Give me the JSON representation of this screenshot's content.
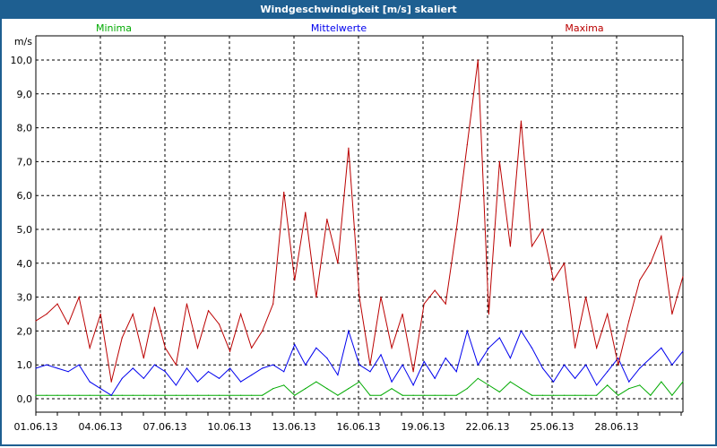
{
  "window": {
    "title": "Windgeschwindigkeit [m/s] skaliert"
  },
  "chart_data": {
    "type": "line",
    "title": "Windgeschwindigkeit [m/s] skaliert",
    "ylabel": "m/s",
    "ylim": [
      -0.4,
      11.1
    ],
    "yticks": [
      "0,0",
      "1,0",
      "2,0",
      "3,0",
      "4,0",
      "5,0",
      "6,0",
      "7,0",
      "8,0",
      "9,0",
      "10,0"
    ],
    "xticks": [
      "01.06.13",
      "04.06.13",
      "07.06.13",
      "10.06.13",
      "13.06.13",
      "16.06.13",
      "19.06.13",
      "22.06.13",
      "25.06.13",
      "28.06.13"
    ],
    "x_unit": "days since 01.06.13, 12h steps",
    "grid": true,
    "legend_placement": "top",
    "series": [
      {
        "name": "Minima",
        "color": "#00aa00",
        "values": [
          0.1,
          0.1,
          0.1,
          0.1,
          0.1,
          0.1,
          0.1,
          0.1,
          0.1,
          0.1,
          0.1,
          0.1,
          0.1,
          0.1,
          0.1,
          0.1,
          0.1,
          0.1,
          0.1,
          0.1,
          0.1,
          0.1,
          0.3,
          0.4,
          0.1,
          0.3,
          0.5,
          0.3,
          0.1,
          0.3,
          0.5,
          0.1,
          0.1,
          0.3,
          0.1,
          0.1,
          0.1,
          0.1,
          0.1,
          0.1,
          0.3,
          0.6,
          0.4,
          0.2,
          0.5,
          0.3,
          0.1,
          0.1,
          0.1,
          0.1,
          0.1,
          0.1,
          0.1,
          0.4,
          0.1,
          0.3,
          0.4,
          0.1,
          0.5,
          0.1,
          0.5
        ]
      },
      {
        "name": "Mittelwerte",
        "color": "#0000ee",
        "values": [
          0.9,
          1.0,
          0.9,
          0.8,
          1.0,
          0.5,
          0.3,
          0.1,
          0.6,
          0.9,
          0.6,
          1.0,
          0.8,
          0.4,
          0.9,
          0.5,
          0.8,
          0.6,
          0.9,
          0.5,
          0.7,
          0.9,
          1.0,
          0.8,
          1.6,
          1.0,
          1.5,
          1.2,
          0.7,
          2.0,
          1.0,
          0.8,
          1.3,
          0.5,
          1.0,
          0.4,
          1.1,
          0.6,
          1.2,
          0.8,
          2.0,
          1.0,
          1.5,
          1.8,
          1.2,
          2.0,
          1.5,
          0.9,
          0.5,
          1.0,
          0.6,
          1.0,
          0.4,
          0.8,
          1.2,
          0.5,
          0.9,
          1.2,
          1.5,
          1.0,
          1.4
        ]
      },
      {
        "name": "Maxima",
        "color": "#bb0000",
        "values": [
          2.3,
          2.5,
          2.8,
          2.2,
          3.0,
          1.5,
          2.5,
          0.5,
          1.8,
          2.5,
          1.2,
          2.7,
          1.5,
          1.0,
          2.8,
          1.5,
          2.6,
          2.2,
          1.4,
          2.5,
          1.5,
          2.0,
          2.8,
          6.1,
          3.5,
          5.5,
          3.0,
          5.3,
          4.0,
          7.4,
          3.0,
          1.0,
          3.0,
          1.5,
          2.5,
          0.8,
          2.8,
          3.2,
          2.8,
          5.0,
          7.5,
          10.0,
          2.5,
          7.0,
          4.5,
          8.2,
          4.5,
          5.0,
          3.5,
          4.0,
          1.5,
          3.0,
          1.5,
          2.5,
          1.0,
          2.3,
          3.5,
          4.0,
          4.8,
          2.5,
          3.6
        ]
      }
    ]
  }
}
